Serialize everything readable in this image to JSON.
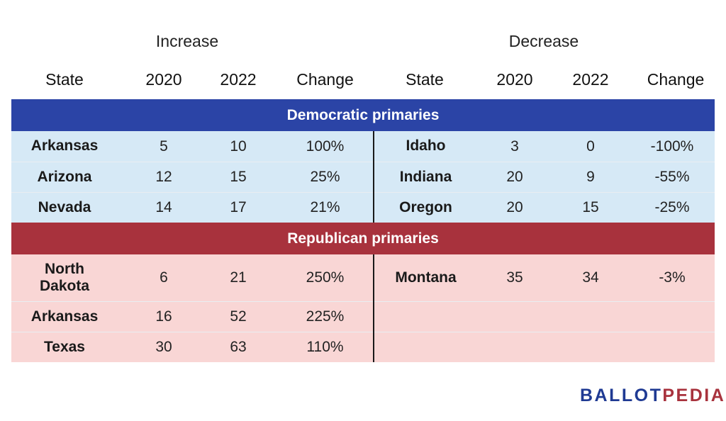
{
  "chart_data": {
    "type": "table",
    "groups": [
      {
        "label": "Increase",
        "columns": [
          "State",
          "2020",
          "2022",
          "Change"
        ]
      },
      {
        "label": "Decrease",
        "columns": [
          "State",
          "2020",
          "2022",
          "Change"
        ]
      }
    ],
    "sections": [
      {
        "label": "Democratic primaries",
        "color": "#2b44a6",
        "row_color": "#d6e9f6",
        "increase": [
          {
            "state": "Arkansas",
            "y2020": "5",
            "y2022": "10",
            "change": "100%"
          },
          {
            "state": "Arizona",
            "y2020": "12",
            "y2022": "15",
            "change": "25%"
          },
          {
            "state": "Nevada",
            "y2020": "14",
            "y2022": "17",
            "change": "21%"
          }
        ],
        "decrease": [
          {
            "state": "Idaho",
            "y2020": "3",
            "y2022": "0",
            "change": "-100%"
          },
          {
            "state": "Indiana",
            "y2020": "20",
            "y2022": "9",
            "change": "-55%"
          },
          {
            "state": "Oregon",
            "y2020": "20",
            "y2022": "15",
            "change": "-25%"
          }
        ]
      },
      {
        "label": "Republican primaries",
        "color": "#a8323d",
        "row_color": "#f9d6d5",
        "increase": [
          {
            "state": "North Dakota",
            "y2020": "6",
            "y2022": "21",
            "change": "250%"
          },
          {
            "state": "Arkansas",
            "y2020": "16",
            "y2022": "52",
            "change": "225%"
          },
          {
            "state": "Texas",
            "y2020": "30",
            "y2022": "63",
            "change": "110%"
          }
        ],
        "decrease": [
          {
            "state": "Montana",
            "y2020": "35",
            "y2022": "34",
            "change": "-3%"
          }
        ]
      }
    ]
  },
  "logo": {
    "part1": "BALLOT",
    "part2": "PEDIA"
  }
}
